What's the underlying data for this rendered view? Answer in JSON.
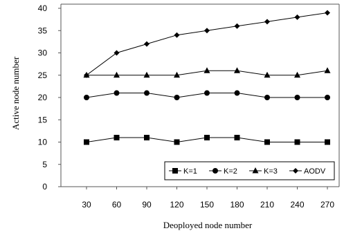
{
  "chart_data": {
    "type": "line",
    "xlabel": "Deoployed node number",
    "ylabel": "Active node number",
    "x": [
      30,
      60,
      90,
      120,
      150,
      180,
      210,
      240,
      270
    ],
    "xticks": [
      "30",
      "60",
      "90",
      "120",
      "150",
      "180",
      "210",
      "240",
      "270"
    ],
    "yticks": [
      "0",
      "5",
      "10",
      "15",
      "20",
      "25",
      "30",
      "35",
      "40"
    ],
    "ylim": [
      0,
      40
    ],
    "grid": false,
    "legend_position": "bottom-right",
    "series": [
      {
        "name": "K=1",
        "marker": "square",
        "values": [
          10,
          11,
          11,
          10,
          11,
          11,
          10,
          10,
          10
        ]
      },
      {
        "name": "K=2",
        "marker": "circle",
        "values": [
          20,
          21,
          21,
          20,
          21,
          21,
          20,
          20,
          20
        ]
      },
      {
        "name": "K=3",
        "marker": "triangle",
        "values": [
          25,
          25,
          25,
          25,
          26,
          26,
          25,
          25,
          26
        ]
      },
      {
        "name": "AODV",
        "marker": "diamond",
        "values": [
          25,
          30,
          32,
          34,
          35,
          36,
          37,
          38,
          39
        ]
      }
    ],
    "colors": {
      "line": "#000000",
      "frame": "#555555"
    }
  }
}
